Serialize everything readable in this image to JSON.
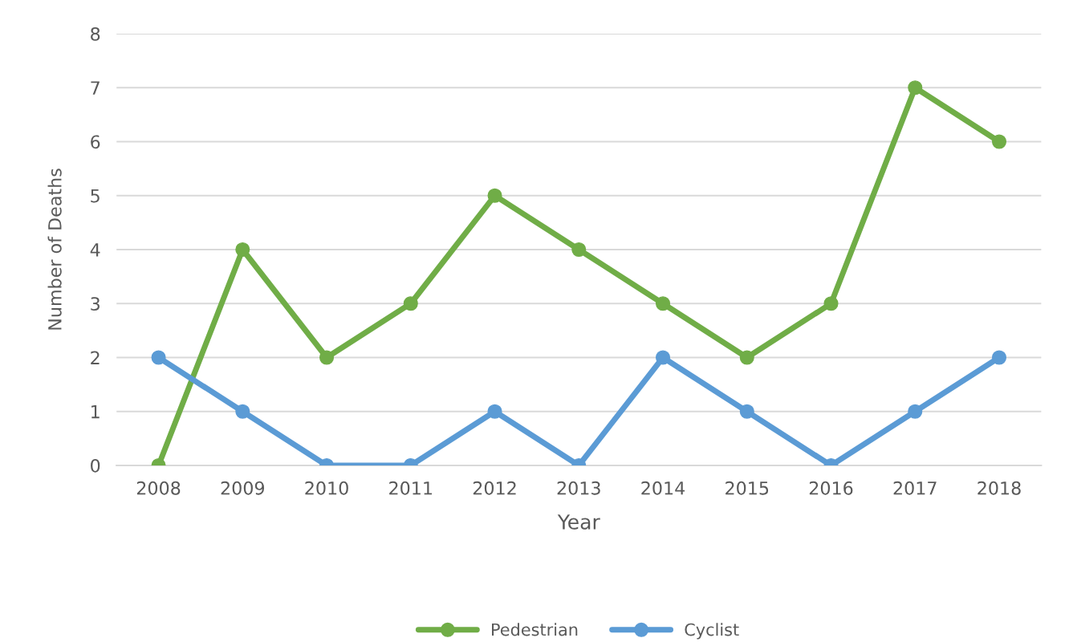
{
  "chart_data": {
    "type": "line",
    "xlabel": "Year",
    "ylabel": "Number of Deaths",
    "categories": [
      "2008",
      "2009",
      "2010",
      "2011",
      "2012",
      "2013",
      "2014",
      "2015",
      "2016",
      "2017",
      "2018"
    ],
    "series": [
      {
        "name": "Pedestrian",
        "color": "#70ad47",
        "values": [
          0,
          4,
          2,
          3,
          5,
          4,
          3,
          2,
          3,
          7,
          6
        ]
      },
      {
        "name": "Cyclist",
        "color": "#5b9bd5",
        "values": [
          2,
          1,
          0,
          0,
          1,
          0,
          2,
          1,
          0,
          1,
          2
        ]
      }
    ],
    "ylim": [
      0,
      8
    ],
    "yticks": [
      0,
      1,
      2,
      3,
      4,
      5,
      6,
      7,
      8
    ],
    "grid": "y",
    "legend": "bottom",
    "marker": "circle",
    "line_style": "solid"
  }
}
